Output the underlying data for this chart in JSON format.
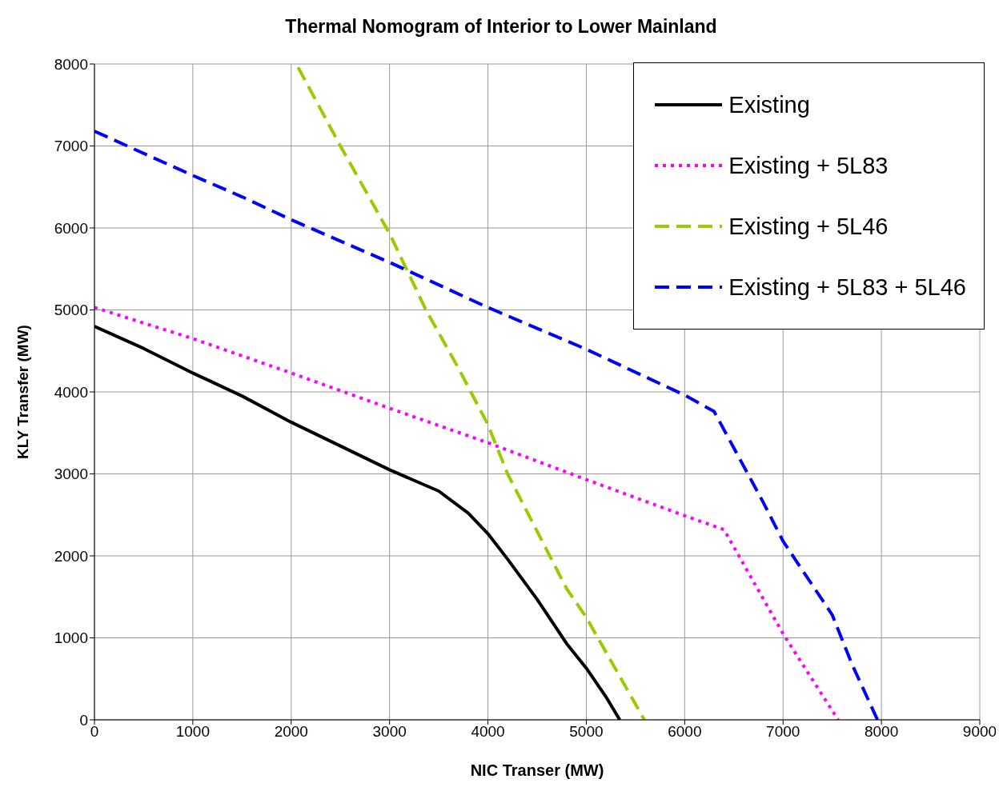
{
  "chart_data": {
    "type": "line",
    "title": "Thermal Nomogram of Interior to Lower Mainland",
    "xlabel": "NIC Transer (MW)",
    "ylabel": "KLY Transfer (MW)",
    "xlim": [
      0,
      9000
    ],
    "xticks": [
      0,
      1000,
      2000,
      3000,
      4000,
      5000,
      6000,
      7000,
      8000,
      9000
    ],
    "ylim": [
      0,
      8000
    ],
    "yticks": [
      0,
      1000,
      2000,
      3000,
      4000,
      5000,
      6000,
      7000,
      8000
    ],
    "grid": true,
    "legend": "top right",
    "marker": "none",
    "series": [
      {
        "name": "Existing",
        "color": "#000000",
        "line_style": "solid",
        "x": [
          0,
          500,
          1000,
          1500,
          2000,
          2500,
          3000,
          3500,
          3800,
          4000,
          4200,
          4500,
          4800,
          5000,
          5200,
          5340
        ],
        "values": [
          4800,
          4530,
          4230,
          3950,
          3630,
          3340,
          3050,
          2790,
          2520,
          2270,
          1960,
          1470,
          930,
          630,
          280,
          0
        ]
      },
      {
        "name": "Existing + 5L83",
        "color": "#ff00ff",
        "line_style": "dotted",
        "x": [
          0,
          1000,
          2000,
          3000,
          4000,
          5000,
          6000,
          6400,
          7000,
          7560
        ],
        "values": [
          5030,
          4650,
          4230,
          3800,
          3380,
          2930,
          2490,
          2320,
          1050,
          0
        ]
      },
      {
        "name": "Existing + 5L46",
        "color": "#99cc00",
        "line_style": "dashed",
        "x": [
          2070,
          2500,
          3000,
          3370,
          3700,
          4000,
          4200,
          4500,
          4800,
          5000,
          5590
        ],
        "values": [
          7960,
          7000,
          5930,
          5000,
          4290,
          3600,
          3000,
          2300,
          1600,
          1250,
          0
        ]
      },
      {
        "name": "Existing + 5L83 + 5L46",
        "color": "#0000ff",
        "line_style": "dashed",
        "x": [
          0,
          1000,
          1500,
          2000,
          3000,
          4000,
          5000,
          6000,
          6300,
          6800,
          7000,
          7500,
          7700,
          7960
        ],
        "values": [
          7180,
          6640,
          6380,
          6100,
          5580,
          5030,
          4520,
          3960,
          3760,
          2650,
          2180,
          1280,
          680,
          0
        ]
      }
    ]
  }
}
